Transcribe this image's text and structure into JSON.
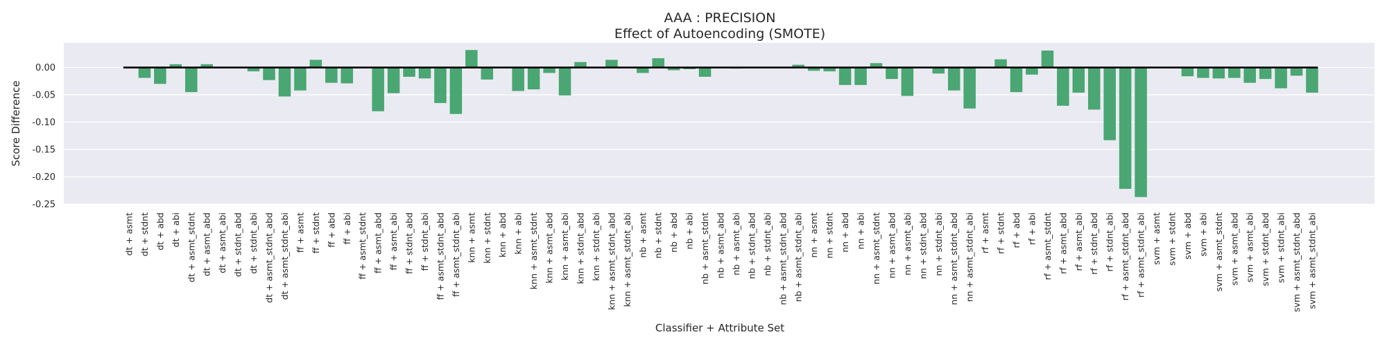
{
  "chart_data": {
    "type": "bar",
    "title": "AAA : PRECISION",
    "subtitle": "Effect of Autoencoding (SMOTE)",
    "xlabel": "Classifier + Attribute Set",
    "ylabel": "Score Difference",
    "ylim": [
      -0.25,
      0.045
    ],
    "yticks": [
      "0.00",
      "-0.05",
      "-0.10",
      "-0.15",
      "-0.20",
      "-0.25"
    ],
    "ytick_values": [
      0.0,
      -0.05,
      -0.1,
      -0.15,
      -0.2,
      -0.25
    ],
    "grid": true,
    "bar_color": "#4aa672",
    "background_color": "#eaeaf2",
    "baseline": 0.0,
    "categories": [
      "dt + asmt",
      "dt + stdnt",
      "dt + abd",
      "dt + abi",
      "dt + asmt_stdnt",
      "dt + asmt_abd",
      "dt + asmt_abi",
      "dt + stdnt_abd",
      "dt + stdnt_abi",
      "dt + asmt_stdnt_abd",
      "dt + asmt_stdnt_abi",
      "ff + asmt",
      "ff + stdnt",
      "ff + abd",
      "ff + abi",
      "ff + asmt_stdnt",
      "ff + asmt_abd",
      "ff + asmt_abi",
      "ff + stdnt_abd",
      "ff + stdnt_abi",
      "ff + asmt_stdnt_abd",
      "ff + asmt_stdnt_abi",
      "knn + asmt",
      "knn + stdnt",
      "knn + abd",
      "knn + abi",
      "knn + asmt_stdnt",
      "knn + asmt_abd",
      "knn + asmt_abi",
      "knn + stdnt_abd",
      "knn + stdnt_abi",
      "knn + asmt_stdnt_abd",
      "knn + asmt_stdnt_abi",
      "nb + asmt",
      "nb + stdnt",
      "nb + abd",
      "nb + abi",
      "nb + asmt_stdnt",
      "nb + asmt_abd",
      "nb + asmt_abi",
      "nb + stdnt_abd",
      "nb + stdnt_abi",
      "nb + asmt_stdnt_abd",
      "nb + asmt_stdnt_abi",
      "nn + asmt",
      "nn + stdnt",
      "nn + abd",
      "nn + abi",
      "nn + asmt_stdnt",
      "nn + asmt_abd",
      "nn + asmt_abi",
      "nn + stdnt_abd",
      "nn + stdnt_abi",
      "nn + asmt_stdnt_abd",
      "nn + asmt_stdnt_abi",
      "rf + asmt",
      "rf + stdnt",
      "rf + abd",
      "rf + abi",
      "rf + asmt_stdnt",
      "rf + asmt_abd",
      "rf + asmt_abi",
      "rf + stdnt_abd",
      "rf + stdnt_abi",
      "rf + asmt_stdnt_abd",
      "rf + asmt_stdnt_abi",
      "svm + asmt",
      "svm + stdnt",
      "svm + abd",
      "svm + abi",
      "svm + asmt_stdnt",
      "svm + asmt_abd",
      "svm + asmt_abi",
      "svm + stdnt_abd",
      "svm + stdnt_abi",
      "svm + asmt_stdnt_abd",
      "svm + asmt_stdnt_abi"
    ],
    "values": [
      0.0,
      -0.019,
      -0.03,
      0.006,
      -0.045,
      0.006,
      0.0,
      0.0,
      -0.007,
      -0.023,
      -0.053,
      -0.042,
      0.014,
      -0.028,
      -0.029,
      0.0,
      -0.08,
      -0.047,
      -0.017,
      -0.02,
      -0.065,
      -0.085,
      0.032,
      -0.022,
      0.0,
      -0.043,
      -0.04,
      -0.01,
      -0.051,
      0.01,
      0.0,
      0.014,
      0.0,
      -0.01,
      0.017,
      -0.005,
      -0.003,
      -0.017,
      0.0,
      -0.002,
      0.0,
      0.0,
      0.0,
      0.005,
      -0.006,
      -0.007,
      -0.032,
      -0.032,
      0.008,
      -0.021,
      -0.052,
      0.0,
      -0.011,
      -0.042,
      -0.075,
      0.0,
      0.015,
      -0.045,
      -0.013,
      0.031,
      -0.07,
      -0.046,
      -0.077,
      -0.133,
      -0.222,
      -0.237,
      0.0,
      0.0,
      -0.016,
      -0.019,
      -0.02,
      -0.019,
      -0.028,
      -0.021,
      -0.038,
      -0.015,
      -0.046
    ]
  }
}
